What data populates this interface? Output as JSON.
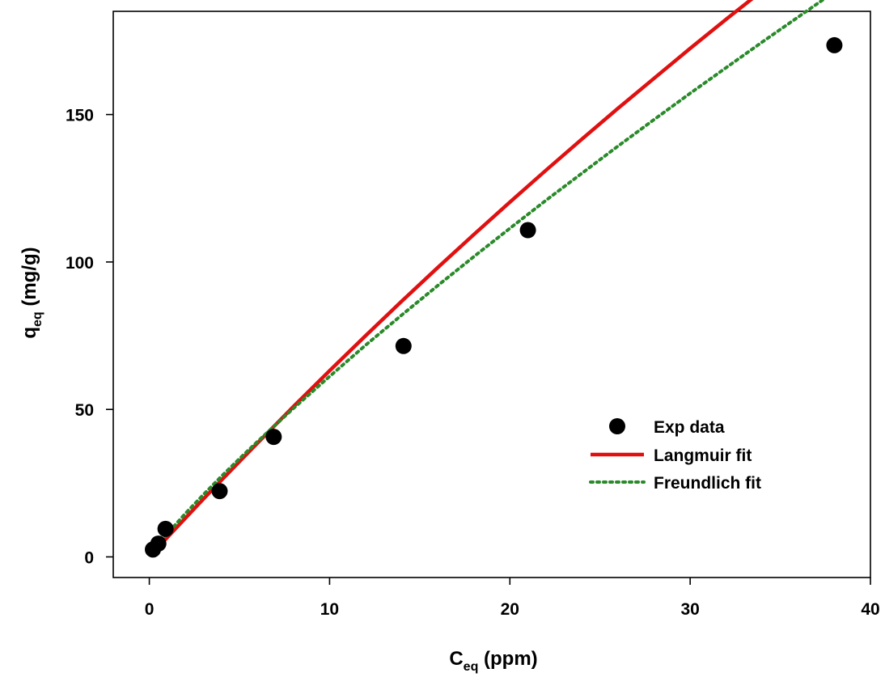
{
  "chart_data": {
    "type": "scatter",
    "xlabel_main": "C",
    "xlabel_sub": "eq",
    "xlabel_unit": " (ppm)",
    "ylabel_main": "q",
    "ylabel_sub": "eq",
    "ylabel_unit": " (mg/g)",
    "xlim": [
      -2,
      40
    ],
    "ylim": [
      -7,
      185
    ],
    "x_ticks": [
      0,
      10,
      20,
      30,
      40
    ],
    "y_ticks": [
      0,
      50,
      100,
      150
    ],
    "grid": false,
    "legend_position": "bottom-right",
    "series": [
      {
        "name": "Exp data",
        "kind": "points",
        "color": "#000000",
        "points": [
          {
            "x": 0.2,
            "y": 2.5
          },
          {
            "x": 0.5,
            "y": 4.5
          },
          {
            "x": 0.9,
            "y": 9.5
          },
          {
            "x": 3.9,
            "y": 22.3
          },
          {
            "x": 6.9,
            "y": 40.7
          },
          {
            "x": 14.1,
            "y": 71.5
          },
          {
            "x": 21.0,
            "y": 110.8
          },
          {
            "x": 38.0,
            "y": 173.5
          }
        ]
      },
      {
        "name": "Langmuir fit",
        "kind": "solid-line",
        "color": "#e01010",
        "x": [
          0.2,
          1,
          2,
          3,
          4,
          5,
          6,
          8,
          10,
          12,
          14,
          16,
          18,
          20,
          22,
          24,
          26,
          28,
          30,
          32,
          34,
          36,
          38
        ],
        "y": [
          1.3,
          6.6,
          13.1,
          19.6,
          26.0,
          32.3,
          38.6,
          51.0,
          63.1,
          75.0,
          86.7,
          98.1,
          109.3,
          120.3,
          131.1,
          141.7,
          152.1,
          162.3,
          172.4,
          182.3,
          192.0,
          201.6,
          211.0
        ]
      },
      {
        "name": "Freundlich fit",
        "kind": "dotted-line",
        "color": "#2a8a2a",
        "x": [
          0.2,
          1,
          2,
          3,
          4,
          5,
          6,
          8,
          10,
          12,
          14,
          16,
          18,
          20,
          22,
          24,
          26,
          28,
          30,
          32,
          34,
          36,
          38
        ],
        "y": [
          1.8,
          7.9,
          14.7,
          21.1,
          27.3,
          33.3,
          39.1,
          50.4,
          61.2,
          71.8,
          82.0,
          92.0,
          101.8,
          111.4,
          120.9,
          130.1,
          139.3,
          148.3,
          157.2,
          165.9,
          174.6,
          183.1,
          191.6
        ]
      }
    ]
  }
}
